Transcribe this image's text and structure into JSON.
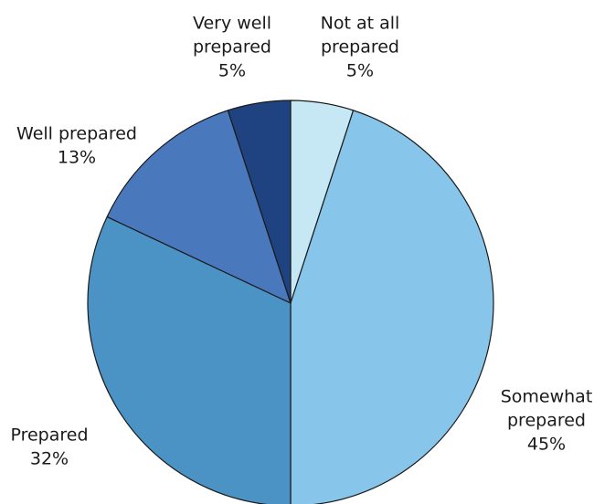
{
  "chart_data": {
    "type": "pie",
    "title": "",
    "start": "12 o'clock",
    "direction": "clockwise",
    "slices": [
      {
        "name": "Not at all prepared",
        "value": 5,
        "color": "#c6e8f5",
        "label_lines": [
          "Not at all",
          "prepared",
          "5%"
        ]
      },
      {
        "name": "Somewhat prepared",
        "value": 45,
        "color": "#88c5ea",
        "label_lines": [
          "Somewhat",
          "prepared",
          "45%"
        ]
      },
      {
        "name": "Prepared",
        "value": 32,
        "color": "#4b93c4",
        "label_lines": [
          "Prepared",
          "32%"
        ]
      },
      {
        "name": "Well prepared",
        "value": 13,
        "color": "#4a78bd",
        "label_lines": [
          "Well prepared",
          "13%"
        ]
      },
      {
        "name": "Very well prepared",
        "value": 5,
        "color": "#1f4280",
        "label_lines": [
          "Very well",
          "prepared",
          "5%"
        ]
      }
    ]
  }
}
